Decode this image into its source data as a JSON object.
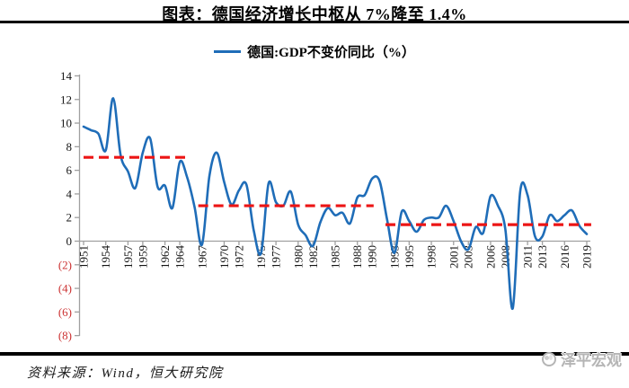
{
  "header": {
    "title": "图表：德国经济增长中枢从 7%降至 1.4%"
  },
  "legend": {
    "series_label": "德国:GDP不变价同比（%）",
    "line_color": "#1f6db8"
  },
  "footer": {
    "source": "资料来源：Wind，恒大研究院",
    "logo_text": "泽平宏观"
  },
  "chart_data": {
    "type": "line",
    "title": "图表：德国经济增长中枢从 7%降至 1.4%",
    "xlabel": "",
    "ylabel": "",
    "ylim": [
      -8,
      14
    ],
    "grid": false,
    "legend_position": "top",
    "axis_color": "#a0a0a0",
    "negative_tick_color": "#cc3333",
    "x_start": 1951,
    "x_end": 2019,
    "x": [
      1951,
      1952,
      1953,
      1954,
      1955,
      1956,
      1957,
      1958,
      1959,
      1960,
      1961,
      1962,
      1963,
      1964,
      1965,
      1966,
      1967,
      1968,
      1969,
      1970,
      1971,
      1972,
      1973,
      1974,
      1975,
      1976,
      1977,
      1978,
      1979,
      1980,
      1981,
      1982,
      1983,
      1984,
      1985,
      1986,
      1987,
      1988,
      1989,
      1990,
      1991,
      1992,
      1993,
      1994,
      1995,
      1996,
      1997,
      1998,
      1999,
      2000,
      2001,
      2002,
      2003,
      2004,
      2005,
      2006,
      2007,
      2008,
      2009,
      2010,
      2011,
      2012,
      2013,
      2014,
      2015,
      2016,
      2017,
      2018,
      2019
    ],
    "series": [
      {
        "name": "德国:GDP不变价同比（%）",
        "color": "#1f6db8",
        "values": [
          9.7,
          9.4,
          9.1,
          7.7,
          12.1,
          7.3,
          5.9,
          4.5,
          7.5,
          8.7,
          4.6,
          4.7,
          2.8,
          6.7,
          5.4,
          2.9,
          -0.3,
          5.5,
          7.5,
          5.0,
          3.1,
          4.3,
          4.8,
          0.9,
          -1.0,
          4.9,
          3.3,
          3.0,
          4.2,
          1.4,
          0.5,
          -0.4,
          1.6,
          2.8,
          2.2,
          2.4,
          1.5,
          3.7,
          3.9,
          5.3,
          5.1,
          1.9,
          -1.0,
          2.5,
          1.7,
          0.8,
          1.8,
          2.0,
          2.0,
          3.0,
          1.7,
          0.0,
          -0.7,
          1.2,
          0.7,
          3.8,
          3.0,
          1.0,
          -5.7,
          4.2,
          3.9,
          0.4,
          0.4,
          2.2,
          1.7,
          2.2,
          2.6,
          1.3,
          0.6
        ]
      }
    ],
    "mean_lines": [
      {
        "value": 7.1,
        "from": 1951,
        "to": 1965.3,
        "color": "#ec1515"
      },
      {
        "value": 3.0,
        "from": 1966.5,
        "to": 1990.2,
        "color": "#ec1515"
      },
      {
        "value": 1.4,
        "from": 1991.8,
        "to": 2019.6,
        "color": "#ec1515"
      }
    ],
    "y_ticks": [
      {
        "value": 14,
        "label": "14"
      },
      {
        "value": 12,
        "label": "12"
      },
      {
        "value": 10,
        "label": "10"
      },
      {
        "value": 8,
        "label": "8"
      },
      {
        "value": 6,
        "label": "6"
      },
      {
        "value": 4,
        "label": "4"
      },
      {
        "value": 2,
        "label": "2"
      },
      {
        "value": 0,
        "label": "0"
      },
      {
        "value": -2,
        "label": "(2)"
      },
      {
        "value": -4,
        "label": "(4)"
      },
      {
        "value": -6,
        "label": "(6)"
      },
      {
        "value": -8,
        "label": "(8)"
      }
    ],
    "x_tick_labels": [
      "1951",
      "1954",
      "1957",
      "1959",
      "1962",
      "1964",
      "1967",
      "1970",
      "1972",
      "1975",
      "1977",
      "1980",
      "1982",
      "1985",
      "1988",
      "1990",
      "1993",
      "1995",
      "1998",
      "2001",
      "2003",
      "2006",
      "2008",
      "2011",
      "2013",
      "2016",
      "2019"
    ]
  }
}
